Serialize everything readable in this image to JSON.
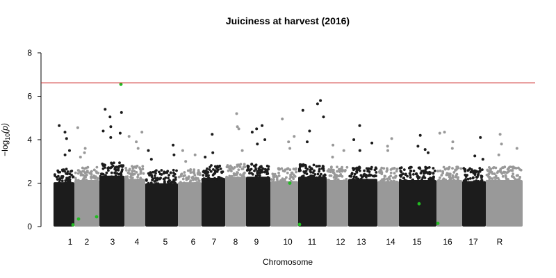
{
  "chart_data": {
    "type": "scatter",
    "subtype": "manhattan",
    "title": "Juiciness at harvest (2016)",
    "xlabel": "Chromosome",
    "ylabel_prefix": "−log",
    "ylabel_sub": "10",
    "ylabel_suffix": "(p)",
    "ylim": [
      0,
      8
    ],
    "yticks": [
      0,
      2,
      4,
      6,
      8
    ],
    "threshold": 6.62,
    "grid": false,
    "colors": {
      "even": "#1c1c1c",
      "odd": "#999999",
      "highlight": "#22bb22",
      "threshold": "#cc2222"
    },
    "chromosomes": [
      {
        "label": "1",
        "color": "even",
        "top_values": [
          4.65,
          4.35,
          4.05,
          3.5,
          3.3
        ]
      },
      {
        "label": "2",
        "color": "odd",
        "top_values": [
          4.55,
          3.6,
          3.4,
          3.2
        ]
      },
      {
        "label": "3",
        "color": "even",
        "top_values": [
          5.4,
          5.25,
          5.05,
          4.6,
          4.4,
          4.3,
          4.1
        ]
      },
      {
        "label": "4",
        "color": "odd",
        "top_values": [
          4.35,
          4.15,
          3.9,
          3.6
        ]
      },
      {
        "label": "5",
        "color": "even",
        "top_values": [
          3.75,
          3.5,
          3.3,
          3.1
        ]
      },
      {
        "label": "6",
        "color": "odd",
        "top_values": [
          3.5,
          3.3,
          3.0
        ]
      },
      {
        "label": "7",
        "color": "even",
        "top_values": [
          4.25,
          3.4,
          3.2
        ]
      },
      {
        "label": "8",
        "color": "odd",
        "top_values": [
          5.2,
          4.6,
          4.5,
          3.5
        ]
      },
      {
        "label": "9",
        "color": "even",
        "top_values": [
          4.65,
          4.5,
          4.35,
          4.0,
          3.8
        ]
      },
      {
        "label": "10",
        "color": "odd",
        "top_values": [
          4.95,
          4.15,
          3.9,
          3.6
        ]
      },
      {
        "label": "11",
        "color": "even",
        "top_values": [
          5.8,
          5.65,
          5.35,
          5.05,
          4.4,
          3.9
        ]
      },
      {
        "label": "12",
        "color": "odd",
        "top_values": [
          3.75,
          3.5,
          3.2
        ]
      },
      {
        "label": "13",
        "color": "even",
        "top_values": [
          4.65,
          4.0,
          3.85,
          3.5
        ]
      },
      {
        "label": "14",
        "color": "odd",
        "top_values": [
          4.05,
          3.7,
          3.5
        ]
      },
      {
        "label": "15",
        "color": "even",
        "top_values": [
          4.2,
          3.7,
          3.55,
          3.4
        ]
      },
      {
        "label": "16",
        "color": "odd",
        "top_values": [
          4.35,
          4.3,
          3.9,
          3.6
        ]
      },
      {
        "label": "17",
        "color": "even",
        "top_values": [
          4.1,
          3.25,
          3.1
        ]
      },
      {
        "label": "R",
        "color": "odd",
        "top_values": [
          4.25,
          3.8,
          3.6,
          3.3
        ]
      }
    ],
    "highlighted_points": [
      {
        "chromosome": "1",
        "value": 0.08
      },
      {
        "chromosome": "1",
        "value": 0.35
      },
      {
        "chromosome": "2",
        "value": 0.45
      },
      {
        "chromosome": "3",
        "value": 6.55
      },
      {
        "chromosome": "10",
        "value": 2.0
      },
      {
        "chromosome": "11",
        "value": 0.1
      },
      {
        "chromosome": "15",
        "value": 1.05
      },
      {
        "chromosome": "16",
        "value": 0.15
      }
    ]
  }
}
